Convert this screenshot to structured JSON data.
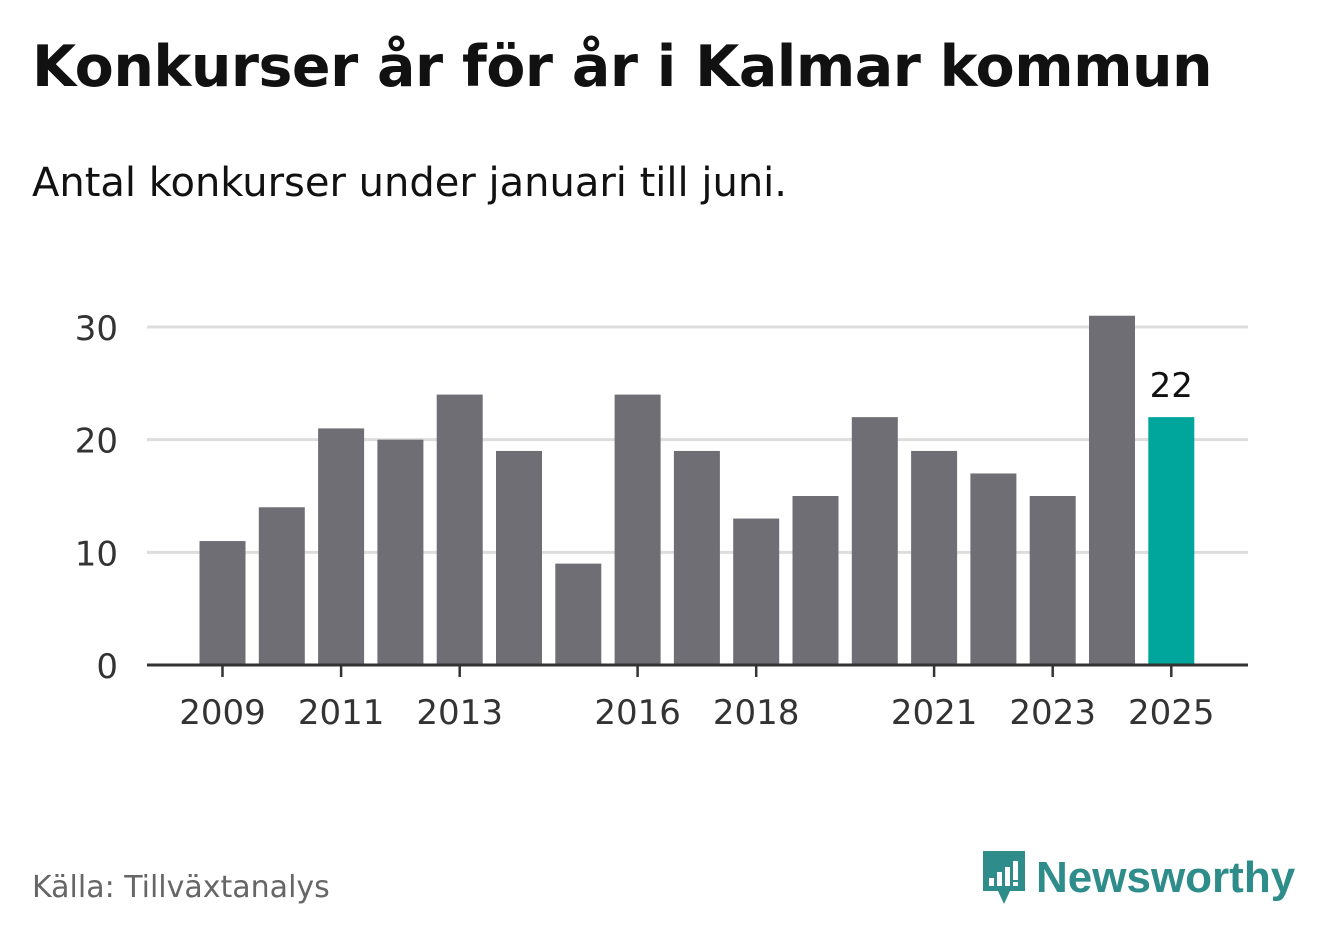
{
  "title": "Konkurser år för år i Kalmar kommun",
  "subtitle": "Antal konkurser under januari till juni.",
  "source": "Källa: Tillväxtanalys",
  "brand": "Newsworthy",
  "colors": {
    "bar": "#6f6e74",
    "highlight": "#00a59b",
    "grid": "#dddddd",
    "axis": "#333333",
    "brand": "#2e8d8a"
  },
  "chart_data": {
    "type": "bar",
    "categories": [
      "2009",
      "2010",
      "2011",
      "2012",
      "2013",
      "2014",
      "2015",
      "2016",
      "2017",
      "2018",
      "2019",
      "2020",
      "2021",
      "2022",
      "2023",
      "2024",
      "2025"
    ],
    "values": [
      11,
      14,
      21,
      20,
      24,
      19,
      9,
      24,
      19,
      13,
      15,
      22,
      19,
      17,
      15,
      31,
      22
    ],
    "tick_labels": [
      "2009",
      "2011",
      "2013",
      "2016",
      "2018",
      "2021",
      "2023",
      "2025"
    ],
    "y_ticks": [
      0,
      10,
      20,
      30
    ],
    "ylim": [
      0,
      31
    ],
    "highlight_category": "2025",
    "data_labels": [
      {
        "category": "2025",
        "label": "22"
      }
    ],
    "grid": true
  }
}
